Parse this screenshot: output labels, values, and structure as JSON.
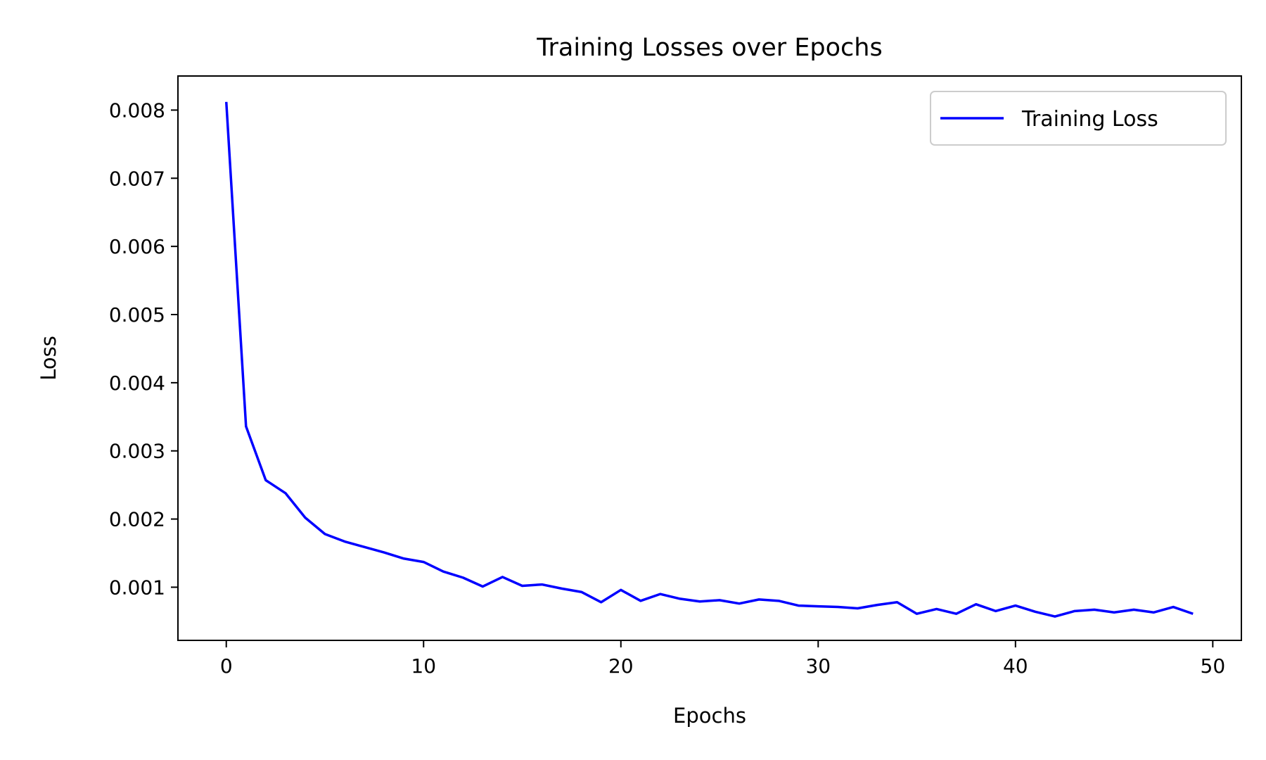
{
  "chart_data": {
    "type": "line",
    "title": "Training Losses over Epochs",
    "xlabel": "Epochs",
    "ylabel": "Loss",
    "xlim": [
      -2.45,
      51.45
    ],
    "ylim": [
      0.00022,
      0.0085
    ],
    "xticks": [
      0,
      10,
      20,
      30,
      40,
      50
    ],
    "xtick_labels": [
      "0",
      "10",
      "20",
      "30",
      "40",
      "50"
    ],
    "yticks": [
      0.001,
      0.002,
      0.003,
      0.004,
      0.005,
      0.006,
      0.007,
      0.008
    ],
    "ytick_labels": [
      "0.001",
      "0.002",
      "0.003",
      "0.004",
      "0.005",
      "0.006",
      "0.007",
      "0.008"
    ],
    "grid": false,
    "legend_position": "top-right",
    "colors": {
      "series": "#0000ff",
      "axes": "#000000",
      "legend_border": "#cccccc"
    },
    "series": [
      {
        "name": "Training Loss",
        "x": [
          0,
          1,
          2,
          3,
          4,
          5,
          6,
          7,
          8,
          9,
          10,
          11,
          12,
          13,
          14,
          15,
          16,
          17,
          18,
          19,
          20,
          21,
          22,
          23,
          24,
          25,
          26,
          27,
          28,
          29,
          30,
          31,
          32,
          33,
          34,
          35,
          36,
          37,
          38,
          39,
          40,
          41,
          42,
          43,
          44,
          45,
          46,
          47,
          48,
          49
        ],
        "values": [
          0.00812,
          0.00336,
          0.00257,
          0.00238,
          0.00202,
          0.00178,
          0.00167,
          0.00159,
          0.00151,
          0.00142,
          0.00137,
          0.00123,
          0.00114,
          0.00101,
          0.00115,
          0.00102,
          0.00104,
          0.00098,
          0.00093,
          0.00078,
          0.00096,
          0.0008,
          0.0009,
          0.00083,
          0.00079,
          0.00081,
          0.00076,
          0.00082,
          0.0008,
          0.00073,
          0.00072,
          0.00071,
          0.00069,
          0.00074,
          0.00078,
          0.00061,
          0.00068,
          0.00061,
          0.00075,
          0.00065,
          0.00073,
          0.00064,
          0.00057,
          0.00065,
          0.00067,
          0.00063,
          0.00067,
          0.00063,
          0.00071,
          0.00061
        ]
      }
    ]
  }
}
